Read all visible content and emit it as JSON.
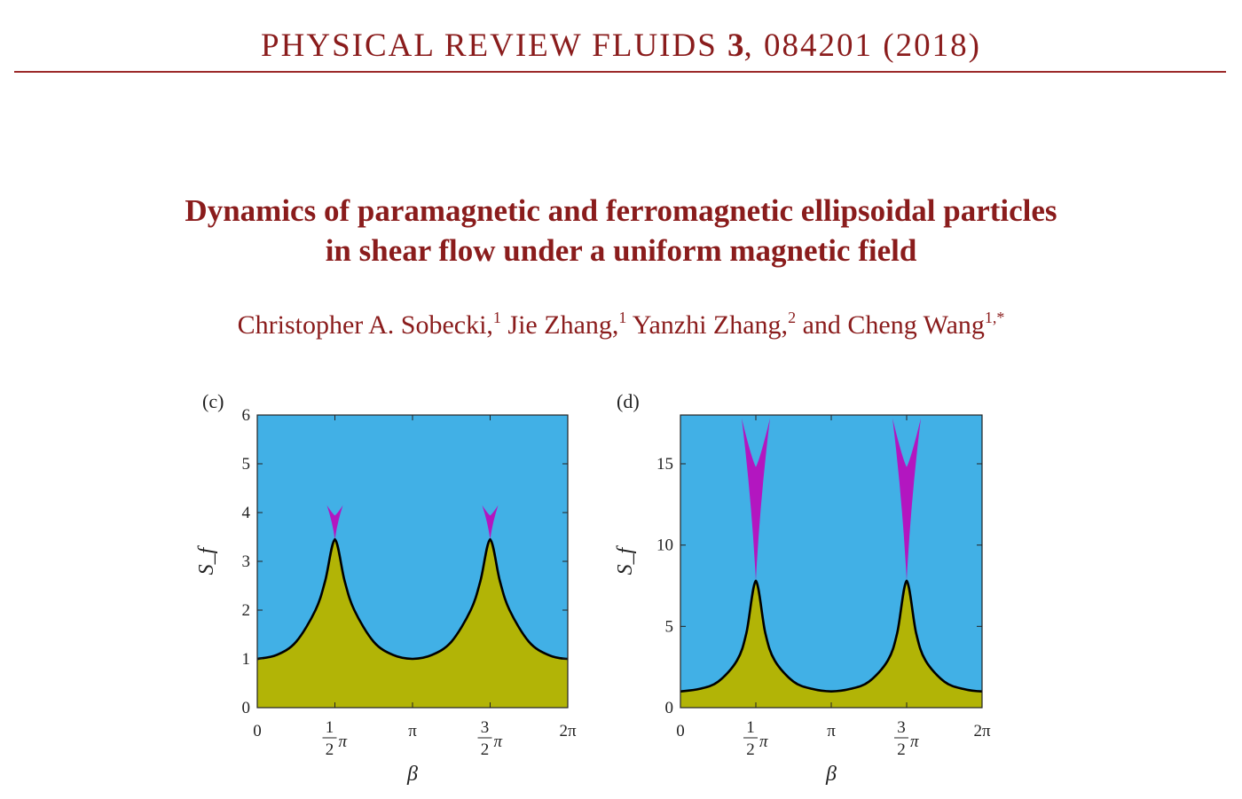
{
  "header": {
    "journal_name": "PHYSICAL REVIEW FLUIDS",
    "volume": "3",
    "citation": ", 084201 (2018)"
  },
  "article": {
    "title_line1": "Dynamics of paramagnetic and ferromagnetic ellipsoidal particles",
    "title_line2": "in shear flow under a uniform magnetic field",
    "authors": [
      {
        "name": "Christopher A. Sobecki,",
        "aff": "1"
      },
      {
        "name": "Jie Zhang,",
        "aff": "1"
      },
      {
        "name": "Yanzhi Zhang,",
        "aff": "2"
      },
      {
        "name": "and Cheng Wang",
        "aff": "1,*"
      }
    ]
  },
  "colors": {
    "upper_region": "#41b0e6",
    "lower_region": "#b2b406",
    "spike_region": "#b316c0",
    "boundary": "#000000",
    "journal_red": "#8a1c1c"
  },
  "chart_data": [
    {
      "panel": "(c)",
      "type": "area",
      "xlabel": "β",
      "ylabel": "S_f",
      "xlim": [
        0,
        6.2832
      ],
      "ylim": [
        0,
        6
      ],
      "xticks": [
        "0",
        "1/2 π",
        "π",
        "3/2 π",
        "2π"
      ],
      "yticks": [
        "0",
        "1",
        "2",
        "3",
        "4",
        "5",
        "6"
      ],
      "boundary_x": [
        0,
        0.3927,
        0.7854,
        1.1781,
        1.3744,
        1.5708,
        1.7671,
        1.9635,
        2.3562,
        2.7489,
        3.1416,
        3.5343,
        3.927,
        4.3197,
        4.516,
        4.7124,
        4.9087,
        5.1051,
        5.4978,
        5.8905,
        6.2832
      ],
      "boundary_y": [
        1.0,
        1.08,
        1.35,
        2.0,
        2.6,
        3.45,
        2.6,
        2.0,
        1.35,
        1.08,
        1.0,
        1.08,
        1.35,
        2.0,
        2.6,
        3.45,
        2.6,
        2.0,
        1.35,
        1.08,
        1.0
      ],
      "spikes": [
        {
          "x_center": 1.5708,
          "y_base": 3.45,
          "y_top": 4.15
        },
        {
          "x_center": 4.7124,
          "y_base": 3.45,
          "y_top": 4.15
        }
      ]
    },
    {
      "panel": "(d)",
      "type": "area",
      "xlabel": "β",
      "ylabel": "S_f",
      "xlim": [
        0,
        6.2832
      ],
      "ylim": [
        0,
        18
      ],
      "xticks": [
        "0",
        "1/2 π",
        "π",
        "3/2 π",
        "2π"
      ],
      "yticks": [
        "0",
        "5",
        "10",
        "15"
      ],
      "boundary_x": [
        0,
        0.3927,
        0.7854,
        1.1781,
        1.3744,
        1.5708,
        1.7671,
        1.9635,
        2.3562,
        2.7489,
        3.1416,
        3.5343,
        3.927,
        4.3197,
        4.516,
        4.7124,
        4.9087,
        5.1051,
        5.4978,
        5.8905,
        6.2832
      ],
      "boundary_y": [
        1.0,
        1.15,
        1.6,
        2.9,
        4.6,
        7.8,
        4.6,
        2.9,
        1.6,
        1.15,
        1.0,
        1.15,
        1.6,
        2.9,
        4.6,
        7.8,
        4.6,
        2.9,
        1.6,
        1.15,
        1.0
      ],
      "spikes": [
        {
          "x_center": 1.5708,
          "y_base": 7.8,
          "y_top": 17.8
        },
        {
          "x_center": 4.7124,
          "y_base": 7.8,
          "y_top": 17.8
        }
      ]
    }
  ]
}
